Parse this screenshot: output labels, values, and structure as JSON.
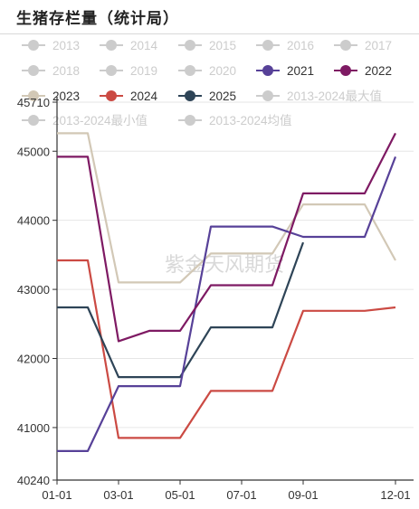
{
  "page_title": "生猪存栏量（统计局）",
  "watermark": "紫金天风期货",
  "colors": {
    "inactive": "#cccccc",
    "s2021": "#574198",
    "s2022": "#7e1a63",
    "s2023": "#d2c8b6",
    "s2024": "#cb4a43",
    "s2025": "#2e4457",
    "grid": "#e6e6e6",
    "axis": "#333333"
  },
  "chart_data": {
    "type": "line",
    "title": "生猪存栏量（统计局）",
    "x_ticks": [
      "01-01",
      "03-01",
      "05-01",
      "07-01",
      "09-01",
      "12-01"
    ],
    "y_ticks": [
      40240,
      41000,
      42000,
      43000,
      44000,
      45000,
      45710
    ],
    "ylim": [
      40240,
      45710
    ],
    "xlim": [
      "01-01",
      "12-01"
    ],
    "grid": "horizontal",
    "legend_position": "top",
    "legend": [
      {
        "name": "2013",
        "active": false
      },
      {
        "name": "2014",
        "active": false
      },
      {
        "name": "2015",
        "active": false
      },
      {
        "name": "2016",
        "active": false
      },
      {
        "name": "2017",
        "active": false
      },
      {
        "name": "2018",
        "active": false
      },
      {
        "name": "2019",
        "active": false
      },
      {
        "name": "2020",
        "active": false
      },
      {
        "name": "2021",
        "active": true,
        "color": "#574198"
      },
      {
        "name": "2022",
        "active": true,
        "color": "#7e1a63"
      },
      {
        "name": "2023",
        "active": true,
        "color": "#d2c8b6"
      },
      {
        "name": "2024",
        "active": true,
        "color": "#cb4a43"
      },
      {
        "name": "2025",
        "active": true,
        "color": "#2e4457"
      },
      {
        "name": "2013-2024最大值",
        "active": false
      },
      {
        "name": "2013-2024最小值",
        "active": false
      },
      {
        "name": "2013-2024均值",
        "active": false
      }
    ],
    "series": [
      {
        "name": "2023",
        "color": "#d2c8b6",
        "points": [
          [
            "01-01",
            45260
          ],
          [
            "02-01",
            45260
          ],
          [
            "03-01",
            43100
          ],
          [
            "04-01",
            43100
          ],
          [
            "05-01",
            43100
          ],
          [
            "06-01",
            43520
          ],
          [
            "07-01",
            43520
          ],
          [
            "08-01",
            43520
          ],
          [
            "09-01",
            44230
          ],
          [
            "10-01",
            44230
          ],
          [
            "11-01",
            44230
          ],
          [
            "12-01",
            43420
          ]
        ]
      },
      {
        "name": "2024",
        "color": "#cb4a43",
        "points": [
          [
            "01-01",
            43420
          ],
          [
            "02-01",
            43420
          ],
          [
            "03-01",
            40850
          ],
          [
            "04-01",
            40850
          ],
          [
            "05-01",
            40850
          ],
          [
            "06-01",
            41530
          ],
          [
            "07-01",
            41530
          ],
          [
            "08-01",
            41530
          ],
          [
            "09-01",
            42690
          ],
          [
            "10-01",
            42690
          ],
          [
            "11-01",
            42690
          ],
          [
            "12-01",
            42740
          ]
        ]
      },
      {
        "name": "2025",
        "color": "#2e4457",
        "points": [
          [
            "01-01",
            42740
          ],
          [
            "02-01",
            42740
          ],
          [
            "03-01",
            41730
          ],
          [
            "04-01",
            41730
          ],
          [
            "05-01",
            41730
          ],
          [
            "06-01",
            42450
          ],
          [
            "07-01",
            42450
          ],
          [
            "08-01",
            42450
          ],
          [
            "09-01",
            43680
          ]
        ]
      },
      {
        "name": "2021",
        "color": "#574198",
        "points": [
          [
            "01-01",
            40660
          ],
          [
            "02-01",
            40660
          ],
          [
            "03-01",
            41600
          ],
          [
            "04-01",
            41600
          ],
          [
            "05-01",
            41600
          ],
          [
            "06-01",
            43910
          ],
          [
            "07-01",
            43910
          ],
          [
            "08-01",
            43910
          ],
          [
            "09-01",
            43760
          ],
          [
            "10-01",
            43760
          ],
          [
            "11-01",
            43760
          ],
          [
            "12-01",
            44920
          ]
        ]
      },
      {
        "name": "2022",
        "color": "#7e1a63",
        "points": [
          [
            "01-01",
            44920
          ],
          [
            "02-01",
            44920
          ],
          [
            "03-01",
            42250
          ],
          [
            "04-01",
            42400
          ],
          [
            "05-01",
            42400
          ],
          [
            "06-01",
            43060
          ],
          [
            "07-01",
            43060
          ],
          [
            "08-01",
            43060
          ],
          [
            "09-01",
            44390
          ],
          [
            "10-01",
            44390
          ],
          [
            "11-01",
            44390
          ],
          [
            "12-01",
            45260
          ]
        ]
      }
    ]
  }
}
